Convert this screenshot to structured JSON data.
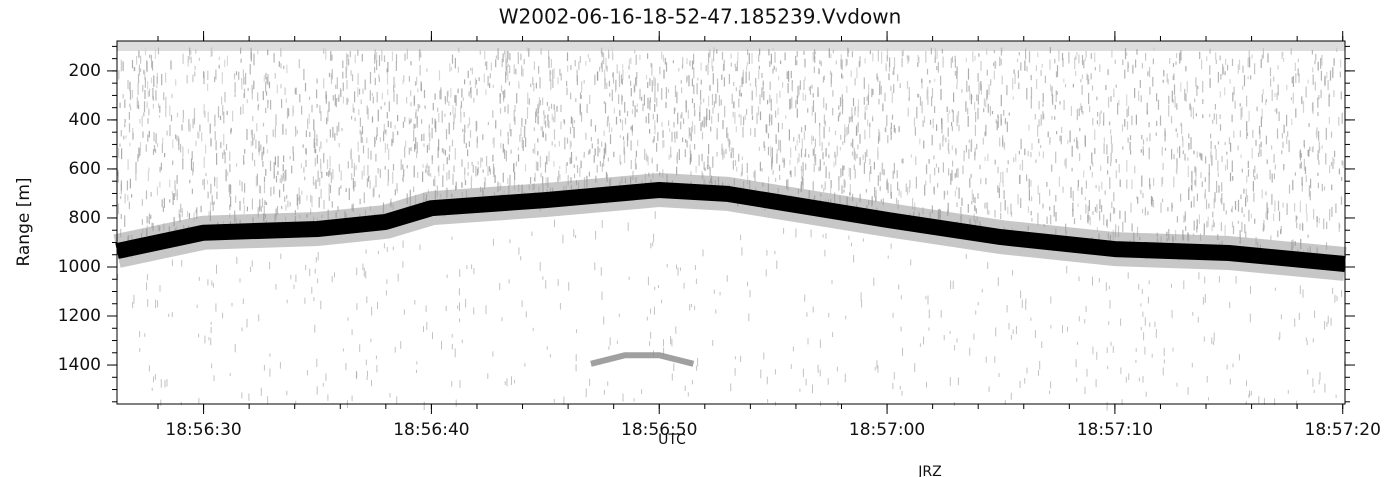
{
  "chart_data": {
    "type": "image",
    "title": "W2002-06-16-18-52-47.185239.Vvdown",
    "x_label": "UTC",
    "y_label": "Range [m]",
    "annotation": "JRZ",
    "xlim": [
      68186.2,
      68240.1
    ],
    "ylim": [
      1559,
      78
    ],
    "xticks": [
      {
        "value": 68190,
        "label": "18:56:30"
      },
      {
        "value": 68200,
        "label": "18:56:40"
      },
      {
        "value": 68210,
        "label": "18:56:50"
      },
      {
        "value": 68220,
        "label": "18:57:00"
      },
      {
        "value": 68230,
        "label": "18:57:10"
      },
      {
        "value": 68240,
        "label": "18:57:20"
      }
    ],
    "yticks": [
      200,
      400,
      600,
      800,
      1000,
      1200,
      1400
    ],
    "series": [
      {
        "color": "#000000",
        "x": [
          68186.2,
          68190,
          68195,
          68198,
          68200,
          68205,
          68210,
          68213,
          68220,
          68225,
          68230,
          68235,
          68240.1
        ],
        "values": [
          935,
          860,
          845,
          816,
          760,
          727,
          686,
          702,
          808,
          878,
          927,
          943,
          988
        ]
      },
      {
        "color": "#888888",
        "x": [
          68207,
          68208.5,
          68210,
          68211.5
        ],
        "values": [
          1395,
          1360,
          1360,
          1395
        ]
      }
    ]
  }
}
